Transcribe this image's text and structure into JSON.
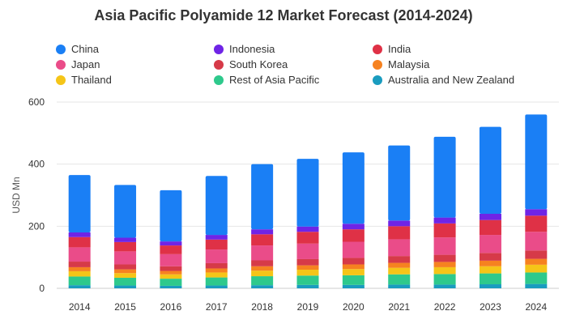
{
  "chart_data": {
    "type": "bar",
    "stacked": true,
    "title": "Asia Pacific Polyamide 12 Market Forecast (2014-2024)",
    "ylabel": "USD Mn",
    "xlabel": "",
    "ylim": [
      0,
      600
    ],
    "yticks": [
      0,
      200,
      400,
      600
    ],
    "grid": true,
    "legend_position": "top",
    "categories": [
      "2014",
      "2015",
      "2016",
      "2017",
      "2018",
      "2019",
      "2020",
      "2021",
      "2022",
      "2023",
      "2024"
    ],
    "series": [
      {
        "name": "Australia and New Zealand",
        "color": "#1a9cbf",
        "values": [
          10,
          9,
          8,
          9,
          10,
          11,
          11,
          12,
          12,
          13,
          14
        ]
      },
      {
        "name": "Rest of Asia Pacific",
        "color": "#2ec98c",
        "values": [
          28,
          25,
          23,
          26,
          29,
          30,
          31,
          33,
          34,
          35,
          37
        ]
      },
      {
        "name": "Thailand",
        "color": "#f5c518",
        "values": [
          17,
          15,
          14,
          16,
          18,
          19,
          20,
          21,
          22,
          23,
          25
        ]
      },
      {
        "name": "Malaysia",
        "color": "#f68220",
        "values": [
          13,
          12,
          11,
          13,
          14,
          14,
          15,
          16,
          17,
          18,
          19
        ]
      },
      {
        "name": "South Korea",
        "color": "#d63a48",
        "values": [
          18,
          16,
          15,
          17,
          19,
          20,
          21,
          22,
          23,
          25,
          27
        ]
      },
      {
        "name": "Japan",
        "color": "#ea4c89",
        "values": [
          46,
          42,
          39,
          44,
          48,
          50,
          52,
          54,
          56,
          58,
          60
        ]
      },
      {
        "name": "India",
        "color": "#df3146",
        "values": [
          33,
          30,
          28,
          32,
          36,
          38,
          40,
          42,
          45,
          48,
          52
        ]
      },
      {
        "name": "Indonesia",
        "color": "#6f24e6",
        "values": [
          15,
          14,
          13,
          15,
          16,
          17,
          18,
          18,
          19,
          20,
          21
        ]
      },
      {
        "name": "China",
        "color": "#1a7ff5",
        "values": [
          185,
          170,
          165,
          190,
          210,
          218,
          230,
          242,
          260,
          280,
          305
        ]
      }
    ],
    "legend": [
      {
        "name": "China",
        "color": "#1a7ff5"
      },
      {
        "name": "Indonesia",
        "color": "#6f24e6"
      },
      {
        "name": "India",
        "color": "#df3146"
      },
      {
        "name": "Japan",
        "color": "#ea4c89"
      },
      {
        "name": "South Korea",
        "color": "#d63a48"
      },
      {
        "name": "Malaysia",
        "color": "#f68220"
      },
      {
        "name": "Thailand",
        "color": "#f5c518"
      },
      {
        "name": "Rest of Asia Pacific",
        "color": "#2ec98c"
      },
      {
        "name": "Australia and New Zealand",
        "color": "#1a9cbf"
      }
    ]
  }
}
